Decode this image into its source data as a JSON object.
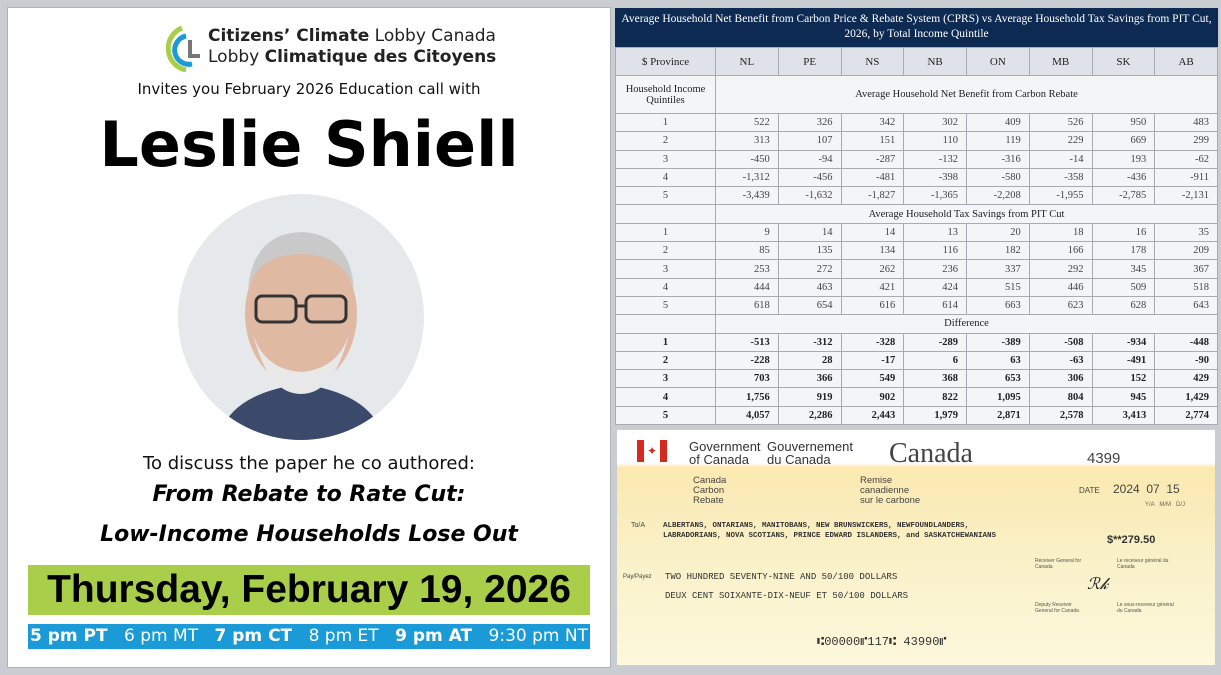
{
  "logo": {
    "line1_bold": "Citizens’ Climate",
    "line1_rest": " Lobby Canada",
    "line2_pre": "Lobby ",
    "line2_bold": "Climatique des Citoyens"
  },
  "invite": "Invites you February  2026 Education call with",
  "speaker": "Leslie Shiell",
  "discuss": "To discuss the paper he co authored:",
  "paper_title": [
    "From Rebate to Rate Cut:",
    "Low-Income Households Lose Out"
  ],
  "date": "Thursday, February 19, 2026",
  "times": [
    {
      "t": "5 pm PT",
      "bold": true
    },
    {
      "t": "6 pm MT",
      "bold": false
    },
    {
      "t": "7 pm CT",
      "bold": true
    },
    {
      "t": "8 pm ET",
      "bold": false
    },
    {
      "t": "9 pm AT",
      "bold": true
    },
    {
      "t": "9:30 pm NT",
      "bold": false
    }
  ],
  "colors": {
    "date_bar": "#a9cf4a",
    "times_bar": "#1a9ad6",
    "table_header": "#0d2a52"
  },
  "table": {
    "title": "Average Household Net Benefit from Carbon Price & Rebate System (CPRS) vs Average Household Tax Savings from PIT Cut, 2026, by Total Income Quintile",
    "corner": "$ Province",
    "provinces": [
      "NL",
      "PE",
      "NS",
      "NB",
      "ON",
      "MB",
      "SK",
      "AB"
    ],
    "row_label": "Household Income Quintiles",
    "sections": [
      {
        "title": "Average Household Net Benefit from Carbon Rebate",
        "bold": false,
        "rows": [
          [
            "1",
            "522",
            "326",
            "342",
            "302",
            "409",
            "526",
            "950",
            "483"
          ],
          [
            "2",
            "313",
            "107",
            "151",
            "110",
            "119",
            "229",
            "669",
            "299"
          ],
          [
            "3",
            "-450",
            "-94",
            "-287",
            "-132",
            "-316",
            "-14",
            "193",
            "-62"
          ],
          [
            "4",
            "-1,312",
            "-456",
            "-481",
            "-398",
            "-580",
            "-358",
            "-436",
            "-911"
          ],
          [
            "5",
            "-3,439",
            "-1,632",
            "-1,827",
            "-1,365",
            "-2,208",
            "-1,955",
            "-2,785",
            "-2,131"
          ]
        ]
      },
      {
        "title": "Average Household Tax Savings from PIT Cut",
        "bold": false,
        "rows": [
          [
            "1",
            "9",
            "14",
            "14",
            "13",
            "20",
            "18",
            "16",
            "35"
          ],
          [
            "2",
            "85",
            "135",
            "134",
            "116",
            "182",
            "166",
            "178",
            "209"
          ],
          [
            "3",
            "253",
            "272",
            "262",
            "236",
            "337",
            "292",
            "345",
            "367"
          ],
          [
            "4",
            "444",
            "463",
            "421",
            "424",
            "515",
            "446",
            "509",
            "518"
          ],
          [
            "5",
            "618",
            "654",
            "616",
            "614",
            "663",
            "623",
            "628",
            "643"
          ]
        ]
      },
      {
        "title": "Difference",
        "bold": true,
        "rows": [
          [
            "1",
            "-513",
            "-312",
            "-328",
            "-289",
            "-389",
            "-508",
            "-934",
            "-448"
          ],
          [
            "2",
            "-228",
            "28",
            "-17",
            "6",
            "63",
            "-63",
            "-491",
            "-90"
          ],
          [
            "3",
            "703",
            "366",
            "549",
            "368",
            "653",
            "306",
            "152",
            "429"
          ],
          [
            "4",
            "1,756",
            "919",
            "902",
            "822",
            "1,095",
            "804",
            "945",
            "1,429"
          ],
          [
            "5",
            "4,057",
            "2,286",
            "2,443",
            "1,979",
            "2,871",
            "2,578",
            "3,413",
            "2,774"
          ]
        ]
      }
    ]
  },
  "cheque": {
    "gov_en": [
      "Government",
      "of Canada"
    ],
    "gov_fr": [
      "Gouvernement",
      "du Canada"
    ],
    "wordmark": "Canada",
    "number": "4399",
    "program_en": [
      "Canada",
      "Carbon",
      "Rebate"
    ],
    "program_fr": [
      "Remise",
      "canadienne",
      "sur le carbone"
    ],
    "date_label": "DATE",
    "date": "2024  07  15",
    "date_units": "Y/A   M/M   D/J",
    "to_label": "To/A",
    "payee": [
      "ALBERTANS, ONTARIANS, MANITOBANS, NEW BRUNSWICKERS, NEWFOUNDLANDERS,",
      "LABRADORIANS, NOVA SCOTIANS, PRINCE EDWARD ISLANDERS, and SASKATCHEWANIANS"
    ],
    "amount": "$**279.50",
    "pay_label": "Pay/Payez",
    "words_en": "TWO HUNDRED SEVENTY-NINE AND 50/100 DOLLARS",
    "words_fr": "DEUX CENT SOIXANTE-DIX-NEUF ET 50/100 DOLLARS",
    "receiver_en": "Receiver General for Canada",
    "receiver_fr": "Le receveur général du Canada",
    "deputy_en": "Deputy Receiver General for Canada",
    "deputy_fr": "Le sous-receveur général du Canada",
    "micr": "⑆00000⑈117⑆ 43990⑈"
  }
}
